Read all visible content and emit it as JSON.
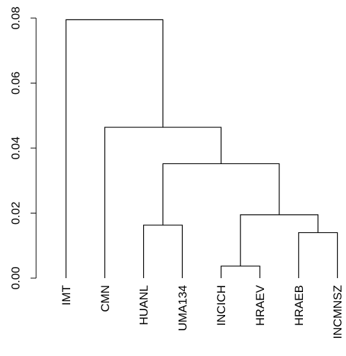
{
  "chart_data": {
    "type": "dendrogram",
    "title": "",
    "xlabel": "",
    "ylabel": "",
    "ylim": [
      0,
      0.08
    ],
    "yticks": [
      "0.00",
      "0.02",
      "0.04",
      "0.06",
      "0.08"
    ],
    "leaves": [
      "IMT",
      "CMN",
      "HUANL",
      "UMA134",
      "INCICH",
      "HRAEV",
      "HRAEB",
      "INCMNSZ"
    ],
    "merges": [
      {
        "id": "m1",
        "left": "INCICH",
        "right": "HRAEV",
        "height": 0.0037
      },
      {
        "id": "m2",
        "left": "HRAEB",
        "right": "INCMNSZ",
        "height": 0.014
      },
      {
        "id": "m3",
        "left": "HUANL",
        "right": "UMA134",
        "height": 0.0163
      },
      {
        "id": "m4",
        "left": "m1",
        "right": "m2",
        "height": 0.0195
      },
      {
        "id": "m5",
        "left": "m3",
        "right": "m4",
        "height": 0.0352
      },
      {
        "id": "m6",
        "left": "CMN",
        "right": "m5",
        "height": 0.0464
      },
      {
        "id": "m7",
        "left": "IMT",
        "right": "m6",
        "height": 0.0795
      }
    ],
    "grid": false,
    "legend": "none",
    "line_color": "#000000"
  }
}
